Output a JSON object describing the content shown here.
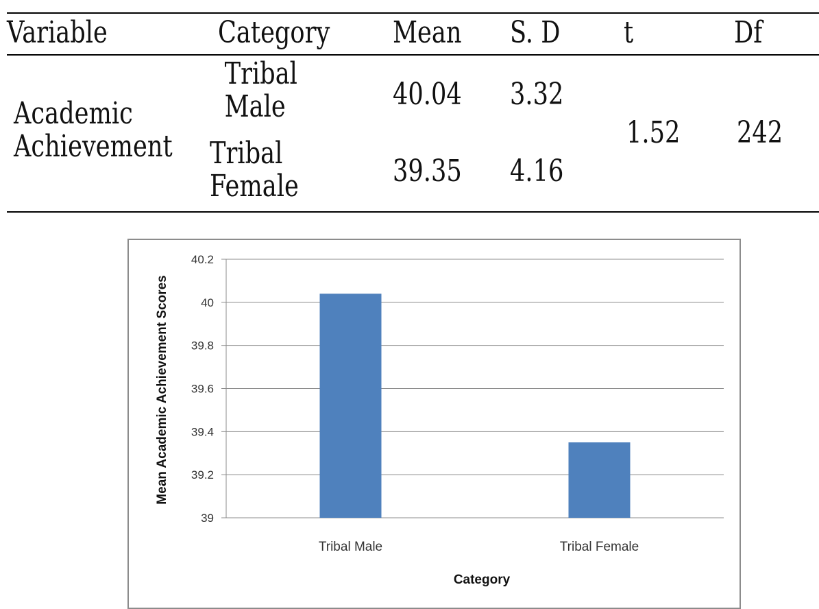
{
  "table": {
    "headers": {
      "variable": "Variable",
      "category": "Category",
      "mean": "Mean",
      "sd": "S. D",
      "t": "t",
      "df": "Df"
    },
    "variable_label": "Academic Achievement",
    "rows": [
      {
        "category": "Tribal Male",
        "mean": "40.04",
        "sd": "3.32"
      },
      {
        "category": "Tribal Female",
        "mean": "39.35",
        "sd": "4.16"
      }
    ],
    "t_value": "1.52",
    "df_value": "242"
  },
  "chart_data": {
    "type": "bar",
    "categories": [
      "Tribal Male",
      "Tribal Female"
    ],
    "values": [
      40.04,
      39.35
    ],
    "xlabel": "Category",
    "ylabel": "Mean Academic Achievement Scores",
    "ylim": [
      39,
      40.2
    ],
    "yticks": [
      "39",
      "39.2",
      "39.4",
      "39.6",
      "39.8",
      "40",
      "40.2"
    ],
    "grid": true,
    "bar_color": "#4f81bd",
    "grid_color": "#8c8c8c"
  }
}
